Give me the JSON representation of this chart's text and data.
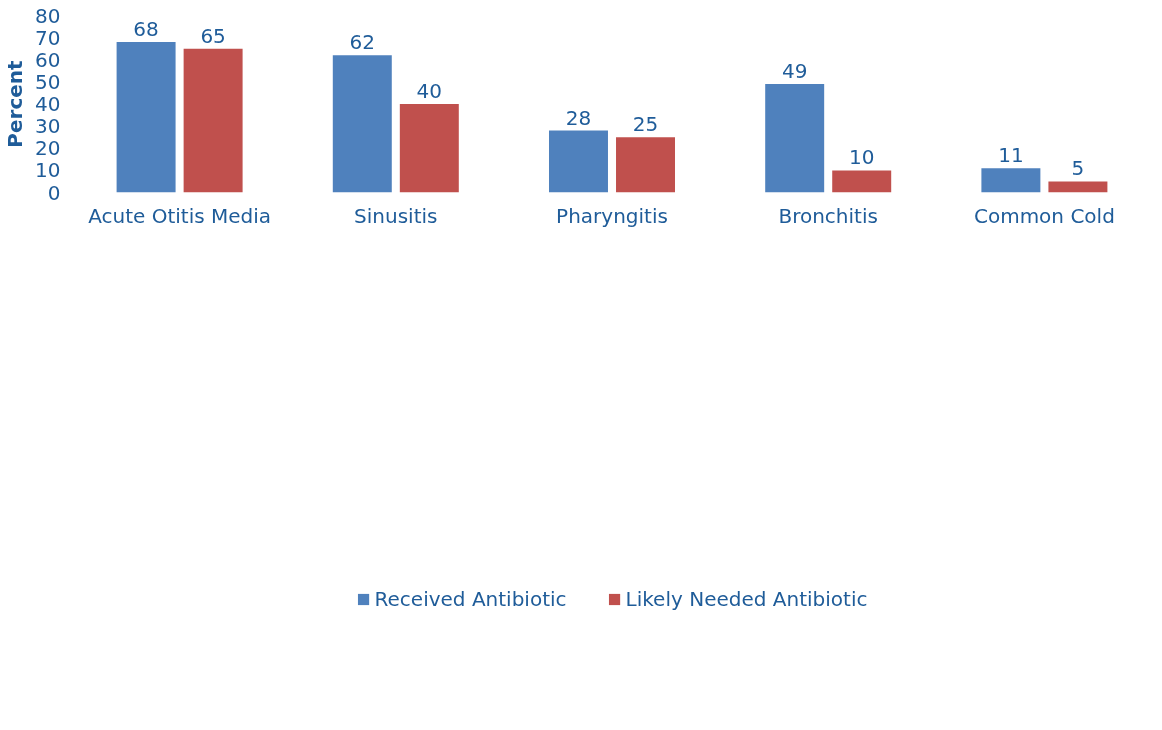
{
  "chart_data": {
    "type": "bar",
    "ylabel": "Percent",
    "categories": [
      "Acute Otitis Media",
      "Sinusitis",
      "Pharyngitis",
      "Bronchitis",
      "Common Cold"
    ],
    "series": [
      {
        "name": "Received Antibiotic",
        "color": "#4f81bd",
        "values": [
          68,
          62,
          28,
          49,
          11
        ]
      },
      {
        "name": "Likely Needed Antibiotic",
        "color": "#c0504d",
        "values": [
          65,
          40,
          25,
          10,
          5
        ]
      }
    ],
    "ylim": [
      0,
      80
    ],
    "yticks": [
      0,
      10,
      20,
      30,
      40,
      50,
      60,
      70,
      80
    ],
    "grid": false,
    "legend": "bottom",
    "data_labels": true
  }
}
